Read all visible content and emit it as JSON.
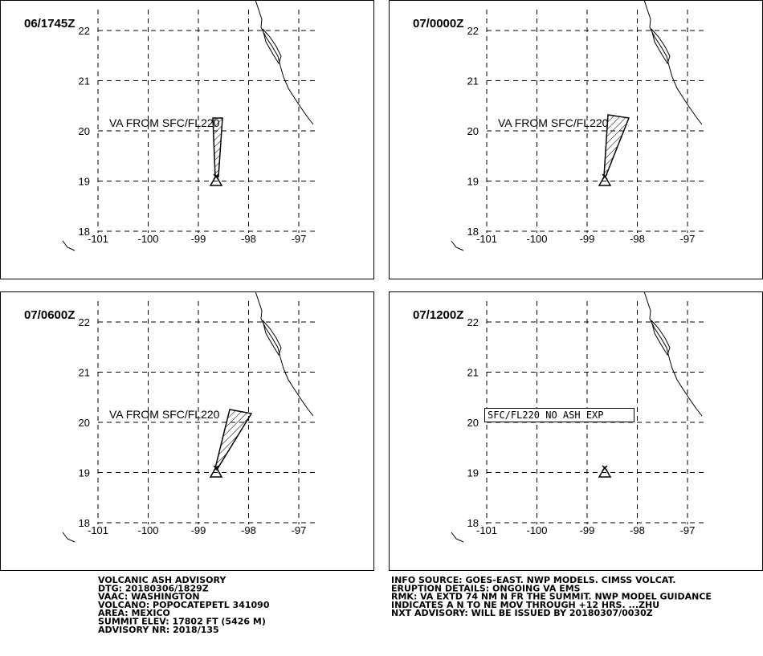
{
  "map": {
    "lon_ticks": [
      -101,
      -100,
      -99,
      -98,
      -97
    ],
    "lat_ticks": [
      18,
      19,
      20,
      21,
      22
    ]
  },
  "panels": [
    {
      "time": "06/1745Z",
      "annotation": "VA FROM SFC/FL220"
    },
    {
      "time": "07/0000Z",
      "annotation": "VA FROM SFC/FL220"
    },
    {
      "time": "07/0600Z",
      "annotation": "VA FROM SFC/FL220"
    },
    {
      "time": "07/1200Z",
      "status": "SFC/FL220 NO ASH EXP"
    }
  ],
  "advisory": {
    "left": [
      "VOLCANIC ASH ADVISORY",
      "DTG: 20180306/1829Z",
      "VAAC: WASHINGTON",
      "VOLCANO: POPOCATEPETL 341090",
      "AREA: MEXICO",
      "SUMMIT ELEV: 17802 FT (5426 M)",
      "ADVISORY NR: 2018/135"
    ],
    "right": [
      "INFO SOURCE: GOES-EAST. NWP MODELS. CIMSS VOLCAT.",
      "ERUPTION DETAILS: ONGOING VA EMS",
      "RMK: VA EXTD 74 NM N FR THE SUMMIT. NWP MODEL GUIDANCE",
      "INDICATES A N TO NE MOV THROUGH +12 HRS. ...ZHU",
      "NXT ADVISORY: WILL BE ISSUED BY 20180307/0030Z"
    ]
  }
}
